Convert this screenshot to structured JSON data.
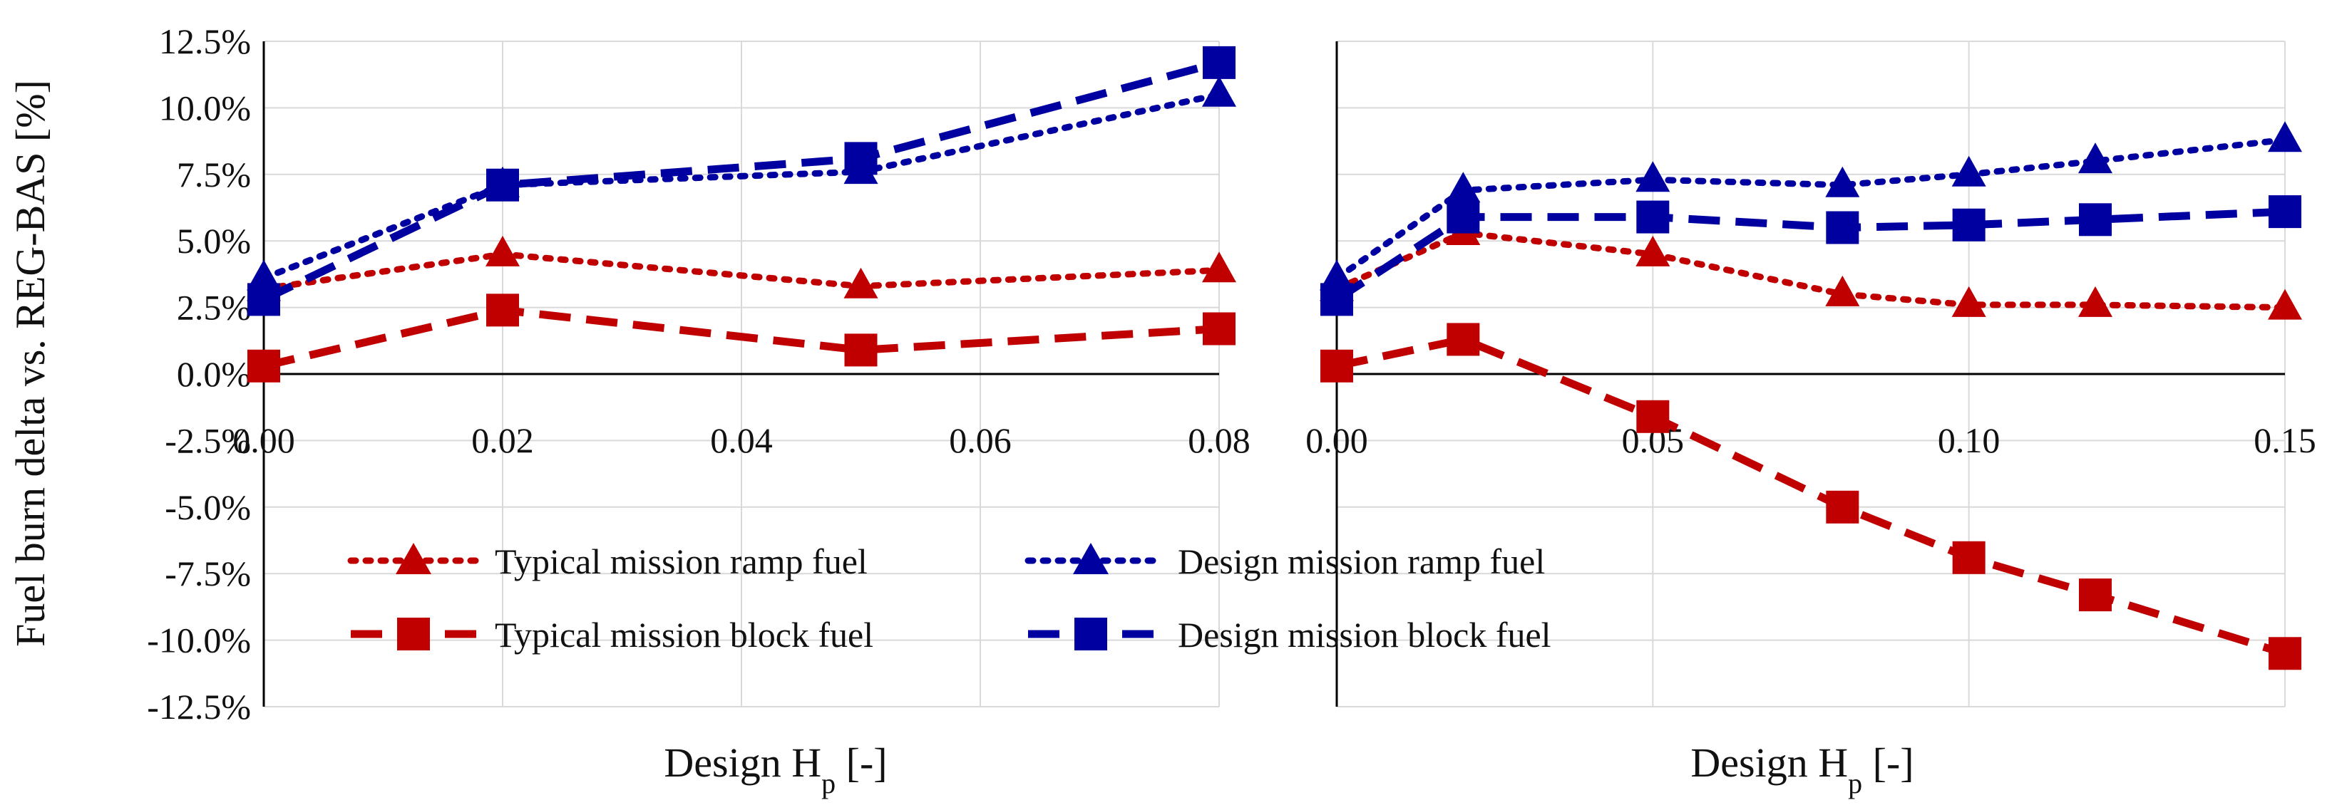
{
  "chart_data": [
    {
      "type": "line",
      "ylabel": "Fuel burn delta vs. REG-BAS [%]",
      "xlabel": "Design Hp [-]",
      "xlabel_main": "Design H",
      "xlabel_sub": "p",
      "xlabel_tail": " [-]",
      "xlim": [
        0,
        0.08
      ],
      "ylim": [
        -12.5,
        12.5
      ],
      "x_ticks": [
        "0.00",
        "0.02",
        "0.04",
        "0.06",
        "0.08"
      ],
      "y_ticks": [
        "12.5%",
        "10.0%",
        "7.5%",
        "5.0%",
        "2.5%",
        "0.0%",
        "-2.5%",
        "-5.0%",
        "-7.5%",
        "-10.0%",
        "-12.5%"
      ],
      "series": [
        {
          "name": "Typical mission ramp fuel",
          "color": "#c00000",
          "marker": "triangle",
          "dash": "dotted",
          "x": [
            0,
            0.02,
            0.05,
            0.08
          ],
          "y": [
            3.2,
            4.5,
            3.3,
            3.9
          ]
        },
        {
          "name": "Typical mission block fuel",
          "color": "#c00000",
          "marker": "square",
          "dash": "dashed",
          "x": [
            0,
            0.02,
            0.05,
            0.08
          ],
          "y": [
            0.3,
            2.4,
            0.9,
            1.7
          ]
        },
        {
          "name": "Design mission ramp fuel",
          "color": "#0000a0",
          "marker": "triangle",
          "dash": "dotted",
          "x": [
            0,
            0.02,
            0.05,
            0.08
          ],
          "y": [
            3.6,
            7.1,
            7.6,
            10.5
          ]
        },
        {
          "name": "Design mission block fuel",
          "color": "#0000a0",
          "marker": "square",
          "dash": "dashed",
          "x": [
            0,
            0.02,
            0.05,
            0.08
          ],
          "y": [
            2.8,
            7.1,
            8.1,
            11.7
          ]
        }
      ]
    },
    {
      "type": "line",
      "xlabel": "Design Hp [-]",
      "xlabel_main": "Design H",
      "xlabel_sub": "p",
      "xlabel_tail": " [-]",
      "xlim": [
        0,
        0.15
      ],
      "ylim": [
        -12.5,
        12.5
      ],
      "x_ticks": [
        "0.00",
        "0.05",
        "0.10",
        "0.15"
      ],
      "series": [
        {
          "name": "Typical mission ramp fuel",
          "color": "#c00000",
          "marker": "triangle",
          "dash": "dotted",
          "x": [
            0,
            0.02,
            0.05,
            0.08,
            0.1,
            0.12,
            0.15
          ],
          "y": [
            3.2,
            5.3,
            4.5,
            3.0,
            2.6,
            2.6,
            2.5
          ]
        },
        {
          "name": "Typical mission block fuel",
          "color": "#c00000",
          "marker": "square",
          "dash": "dashed",
          "x": [
            0,
            0.02,
            0.05,
            0.08,
            0.1,
            0.12,
            0.15
          ],
          "y": [
            0.3,
            1.3,
            -1.6,
            -5.0,
            -6.9,
            -8.3,
            -10.5
          ]
        },
        {
          "name": "Design mission ramp fuel",
          "color": "#0000a0",
          "marker": "triangle",
          "dash": "dotted",
          "x": [
            0,
            0.02,
            0.05,
            0.08,
            0.1,
            0.12,
            0.15
          ],
          "y": [
            3.6,
            6.9,
            7.3,
            7.1,
            7.5,
            8.0,
            8.8
          ]
        },
        {
          "name": "Design mission block fuel",
          "color": "#0000a0",
          "marker": "square",
          "dash": "dashed",
          "x": [
            0,
            0.02,
            0.05,
            0.08,
            0.1,
            0.12,
            0.15
          ],
          "y": [
            2.8,
            5.9,
            5.9,
            5.5,
            5.6,
            5.8,
            6.1
          ]
        }
      ]
    }
  ],
  "legend": {
    "placement": "bottom-center",
    "items": [
      {
        "label": "Typical mission ramp fuel",
        "color": "#c00000",
        "marker": "triangle",
        "dash": "dotted"
      },
      {
        "label": "Design mission ramp fuel",
        "color": "#0000a0",
        "marker": "triangle",
        "dash": "dotted"
      },
      {
        "label": "Typical mission block fuel",
        "color": "#c00000",
        "marker": "square",
        "dash": "dashed"
      },
      {
        "label": "Design mission block fuel",
        "color": "#0000a0",
        "marker": "square",
        "dash": "dashed"
      }
    ]
  }
}
